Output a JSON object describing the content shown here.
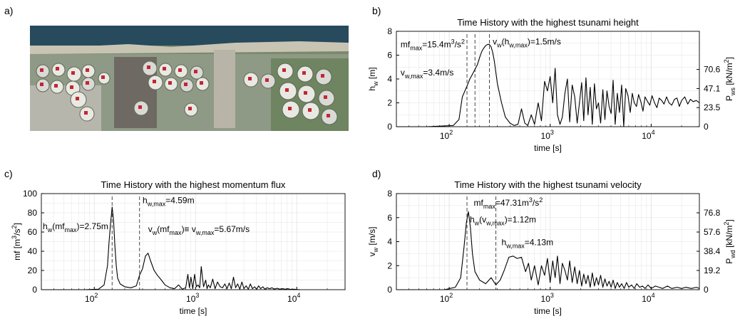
{
  "panel_labels": [
    "a)",
    "b)",
    "c)",
    "d)"
  ],
  "colors": {
    "line": "#000000",
    "grid": "#e3e3e3",
    "text": "#000000",
    "marker": "#c0282e"
  },
  "photo": {
    "description_icons": [
      "coastline-photo",
      "storage-tank-icon"
    ]
  },
  "chart_data": [
    {
      "id": "b",
      "type": "line",
      "title": "Time History with the highest tsunami height",
      "xlabel": "time [s]",
      "ylabel": "h_w [m]",
      "ylabel_right": "P_ws [kN/m²]",
      "xscale": "log",
      "xlim": [
        30,
        30000
      ],
      "ylim": [
        0,
        8
      ],
      "xticks": [
        {
          "v": 100,
          "e": "2"
        },
        {
          "v": 1000,
          "e": "3"
        },
        {
          "v": 10000,
          "e": "4"
        }
      ],
      "yticks": [
        0,
        2,
        4,
        6,
        8
      ],
      "yticks_right": [
        {
          "y": 0,
          "label": "0"
        },
        {
          "y": 1.6,
          "label": "23.5"
        },
        {
          "y": 3.2,
          "label": "47.1"
        },
        {
          "y": 4.8,
          "label": "70.6"
        }
      ],
      "grid": true,
      "vlines": [
        150,
        180,
        250
      ],
      "annotations": [
        {
          "base": "mf",
          "sub": "max",
          "rest": "=15.4m",
          "sup": "3",
          "tail": "/s",
          "sup2": "2",
          "x": 33,
          "y": 6.65
        },
        {
          "base": "v",
          "sub": "w",
          "rest": "(h",
          "sub2": "w,max",
          "tail": ")=1.5m/s",
          "x": 270,
          "y": 6.9
        },
        {
          "base": "v",
          "sub": "w,max",
          "rest": "=3.4m/s",
          "x": 33,
          "y": 4.3
        }
      ],
      "series": [
        {
          "x": [
            30,
            60,
            110,
            125,
            135,
            150,
            160,
            170,
            180,
            190,
            200,
            210,
            220,
            230,
            240,
            250,
            260,
            270,
            280,
            300,
            330,
            360,
            400,
            440,
            480,
            520,
            560,
            600,
            650,
            700,
            760,
            820,
            880,
            940,
            1000,
            1060,
            1120,
            1180,
            1250,
            1320,
            1400,
            1480,
            1560,
            1650,
            1750,
            1850,
            1950,
            2050,
            2150,
            2260,
            2370,
            2490,
            2610,
            2740,
            2870,
            3010,
            3160,
            3320,
            3480,
            3650,
            3830,
            4010,
            4200,
            4400,
            4620,
            4850,
            5100,
            5350,
            5600,
            5900,
            6200,
            6500,
            6800,
            7150,
            7500,
            7900,
            8300,
            8700,
            9200,
            9700,
            10200,
            10800,
            11400,
            12000,
            12700,
            13400,
            14200,
            15000,
            16000,
            17000,
            18000,
            19000,
            20000,
            21500,
            23000,
            24500,
            26000,
            28000,
            30000
          ],
          "y": [
            0,
            0,
            0.1,
            0.6,
            2.5,
            3.4,
            4.0,
            4.4,
            4.8,
            5.2,
            5.8,
            6.3,
            6.6,
            6.8,
            6.9,
            6.9,
            6.7,
            6.2,
            5.5,
            3.6,
            2.0,
            0.8,
            0.3,
            0.1,
            0.2,
            1.5,
            0.3,
            0.1,
            1.0,
            0.2,
            2.0,
            0.5,
            3.8,
            3.0,
            4.2,
            2.0,
            4.9,
            1.0,
            0.2,
            0.8,
            2.8,
            4.0,
            0.4,
            3.5,
            2.5,
            0.3,
            2.0,
            3.7,
            0.5,
            4.1,
            1.0,
            3.3,
            0.2,
            3.6,
            1.5,
            2.0,
            0.3,
            3.1,
            0.6,
            3.0,
            1.7,
            1.1,
            3.9,
            0.2,
            2.8,
            1.2,
            3.5,
            0.0,
            3.2,
            2.6,
            1.2,
            2.8,
            2.0,
            1.7,
            2.7,
            2.1,
            1.3,
            2.5,
            2.1,
            1.8,
            2.6,
            2.0,
            1.6,
            2.4,
            2.2,
            1.9,
            2.5,
            2.0,
            1.8,
            2.3,
            2.4,
            1.7,
            2.2,
            2.5,
            1.9,
            2.3,
            2.1,
            2.2,
            2.0
          ]
        }
      ]
    },
    {
      "id": "c",
      "type": "line",
      "title": "Time History with the highest momentum flux",
      "xlabel": "time [s]",
      "ylabel": "mf [m³/s²]",
      "xscale": "log",
      "xlim": [
        30,
        30000
      ],
      "ylim": [
        0,
        100
      ],
      "xticks": [
        {
          "v": 100,
          "e": "2"
        },
        {
          "v": 1000,
          "e": "3"
        },
        {
          "v": 10000,
          "e": "4"
        }
      ],
      "yticks": [
        0,
        20,
        40,
        60,
        80,
        100
      ],
      "grid": true,
      "vlines": [
        150,
        280
      ],
      "annotations": [
        {
          "base": "h",
          "sub": "w,max",
          "rest": "=4.59m",
          "x": 300,
          "y": 90
        },
        {
          "base": "h",
          "sub": "w",
          "rest": "(mf",
          "sub2": "max",
          "tail": ")=2.75m",
          "x": 31,
          "y": 63
        },
        {
          "base": "v",
          "sub": "w",
          "rest": "(mf",
          "sub2": "max",
          "tail": ")≡ v",
          "sub3": "w,max",
          "tail2": "=5.67m/s",
          "x": 340,
          "y": 60
        }
      ],
      "series": [
        {
          "x": [
            30,
            80,
            110,
            125,
            135,
            140,
            145,
            150,
            155,
            160,
            165,
            170,
            180,
            200,
            230,
            260,
            280,
            300,
            320,
            340,
            360,
            390,
            420,
            460,
            500,
            560,
            620,
            680,
            740,
            800,
            840,
            870,
            900,
            940,
            980,
            1020,
            1060,
            1100,
            1140,
            1200,
            1260,
            1300,
            1340,
            1400,
            1480,
            1560,
            1650,
            1750,
            1850,
            1950,
            2050,
            2150,
            2260,
            2370,
            2490,
            2610,
            2740,
            2870,
            3010,
            3160,
            3320,
            3480,
            3650,
            3830,
            4010,
            4200,
            4400,
            4620,
            4850,
            5100,
            5400,
            5700,
            6000,
            6400,
            6800,
            7200,
            7700,
            8200,
            8700,
            9300,
            10000,
            10800
          ],
          "y": [
            0,
            0,
            0.5,
            5,
            25,
            50,
            70,
            86,
            72,
            45,
            25,
            12,
            6,
            3,
            2,
            4,
            15,
            22,
            35,
            38,
            30,
            20,
            15,
            10,
            5,
            2,
            1,
            5,
            0.5,
            2,
            16,
            2,
            13,
            1,
            16,
            3,
            5,
            2,
            24,
            3,
            10,
            1,
            5,
            2,
            11,
            1,
            8,
            3,
            2,
            6,
            1,
            7,
            1,
            13,
            2,
            6,
            0.5,
            8,
            1,
            4,
            0.5,
            6,
            1,
            3,
            0.5,
            4,
            1,
            3,
            0.5,
            2,
            1,
            2,
            0.5,
            1.5,
            0.5,
            1,
            0.5,
            1,
            0.3,
            0.5,
            0.2,
            0
          ]
        }
      ]
    },
    {
      "id": "d",
      "type": "line",
      "title": "Time History with the highest tsunami velocity",
      "xlabel": "time [s]",
      "ylabel": "v_w [m/s]",
      "ylabel_right": "P_wd [kN/m²]",
      "xscale": "log",
      "xlim": [
        30,
        30000
      ],
      "ylim": [
        0,
        8
      ],
      "xticks": [
        {
          "v": 100,
          "e": "2"
        },
        {
          "v": 1000,
          "e": "3"
        },
        {
          "v": 10000,
          "e": "4"
        }
      ],
      "yticks": [
        0,
        2,
        4,
        6,
        8
      ],
      "yticks_right": [
        {
          "y": 0,
          "label": "0"
        },
        {
          "y": 1.6,
          "label": "19.2"
        },
        {
          "y": 3.2,
          "label": "38.4"
        },
        {
          "y": 4.8,
          "label": "57.6"
        },
        {
          "y": 6.4,
          "label": "76.8"
        }
      ],
      "grid": true,
      "vlines": [
        150,
        290
      ],
      "annotations": [
        {
          "base": "mf",
          "sub": "max",
          "rest": "=47.31m",
          "sup": "3",
          "tail": "/s",
          "sup2": "2",
          "x": 175,
          "y": 7.0
        },
        {
          "base": "h",
          "sub": "w",
          "rest": "(v",
          "sub2": "w,max",
          "tail": ")=1.12m",
          "x": 160,
          "y": 5.6
        },
        {
          "base": "h",
          "sub": "w,max",
          "rest": "=4.13m",
          "x": 330,
          "y": 3.7
        }
      ],
      "series": [
        {
          "x": [
            30,
            90,
            115,
            130,
            140,
            148,
            155,
            162,
            170,
            180,
            200,
            230,
            260,
            290,
            320,
            350,
            390,
            430,
            470,
            520,
            570,
            610,
            650,
            700,
            760,
            820,
            880,
            940,
            1000,
            1060,
            1120,
            1180,
            1250,
            1320,
            1400,
            1480,
            1560,
            1650,
            1750,
            1850,
            1950,
            2050,
            2150,
            2260,
            2370,
            2490,
            2610,
            2740,
            2870,
            3010,
            3160,
            3320,
            3480,
            3650,
            3830,
            4010,
            4200,
            4400,
            4620,
            4850,
            5100,
            5400,
            5700,
            6000,
            6400,
            6800,
            7200,
            7700,
            8200,
            8700,
            9300,
            10000,
            11000,
            12000,
            13000,
            14500,
            16000,
            18000,
            20000,
            22000,
            25000,
            28000,
            30000
          ],
          "y": [
            0,
            0,
            0.2,
            1.0,
            3.5,
            5.6,
            6.5,
            5.2,
            3.0,
            1.5,
            0.8,
            0.5,
            1.0,
            0.4,
            0.8,
            1.6,
            2.7,
            2.8,
            2.6,
            2.7,
            1.5,
            2.2,
            0.8,
            2.0,
            0.4,
            2.0,
            1.2,
            2.6,
            0.6,
            2.4,
            1.0,
            2.8,
            0.5,
            2.2,
            1.6,
            0.8,
            2.4,
            0.6,
            1.9,
            0.5,
            1.6,
            0.3,
            1.3,
            0.5,
            1.2,
            0.2,
            1.4,
            0.3,
            1.0,
            0.4,
            1.2,
            0.2,
            0.9,
            0.3,
            0.7,
            0.2,
            0.8,
            0.1,
            0.6,
            0.2,
            0.5,
            0.1,
            0.6,
            0.2,
            0.4,
            0.1,
            0.5,
            0.2,
            0.3,
            0.1,
            0.4,
            0.1,
            0.3,
            0.2,
            0.1,
            0.3,
            0.1,
            0.2,
            0.1,
            0.2,
            0.1,
            0.2,
            0.1
          ]
        }
      ]
    }
  ]
}
